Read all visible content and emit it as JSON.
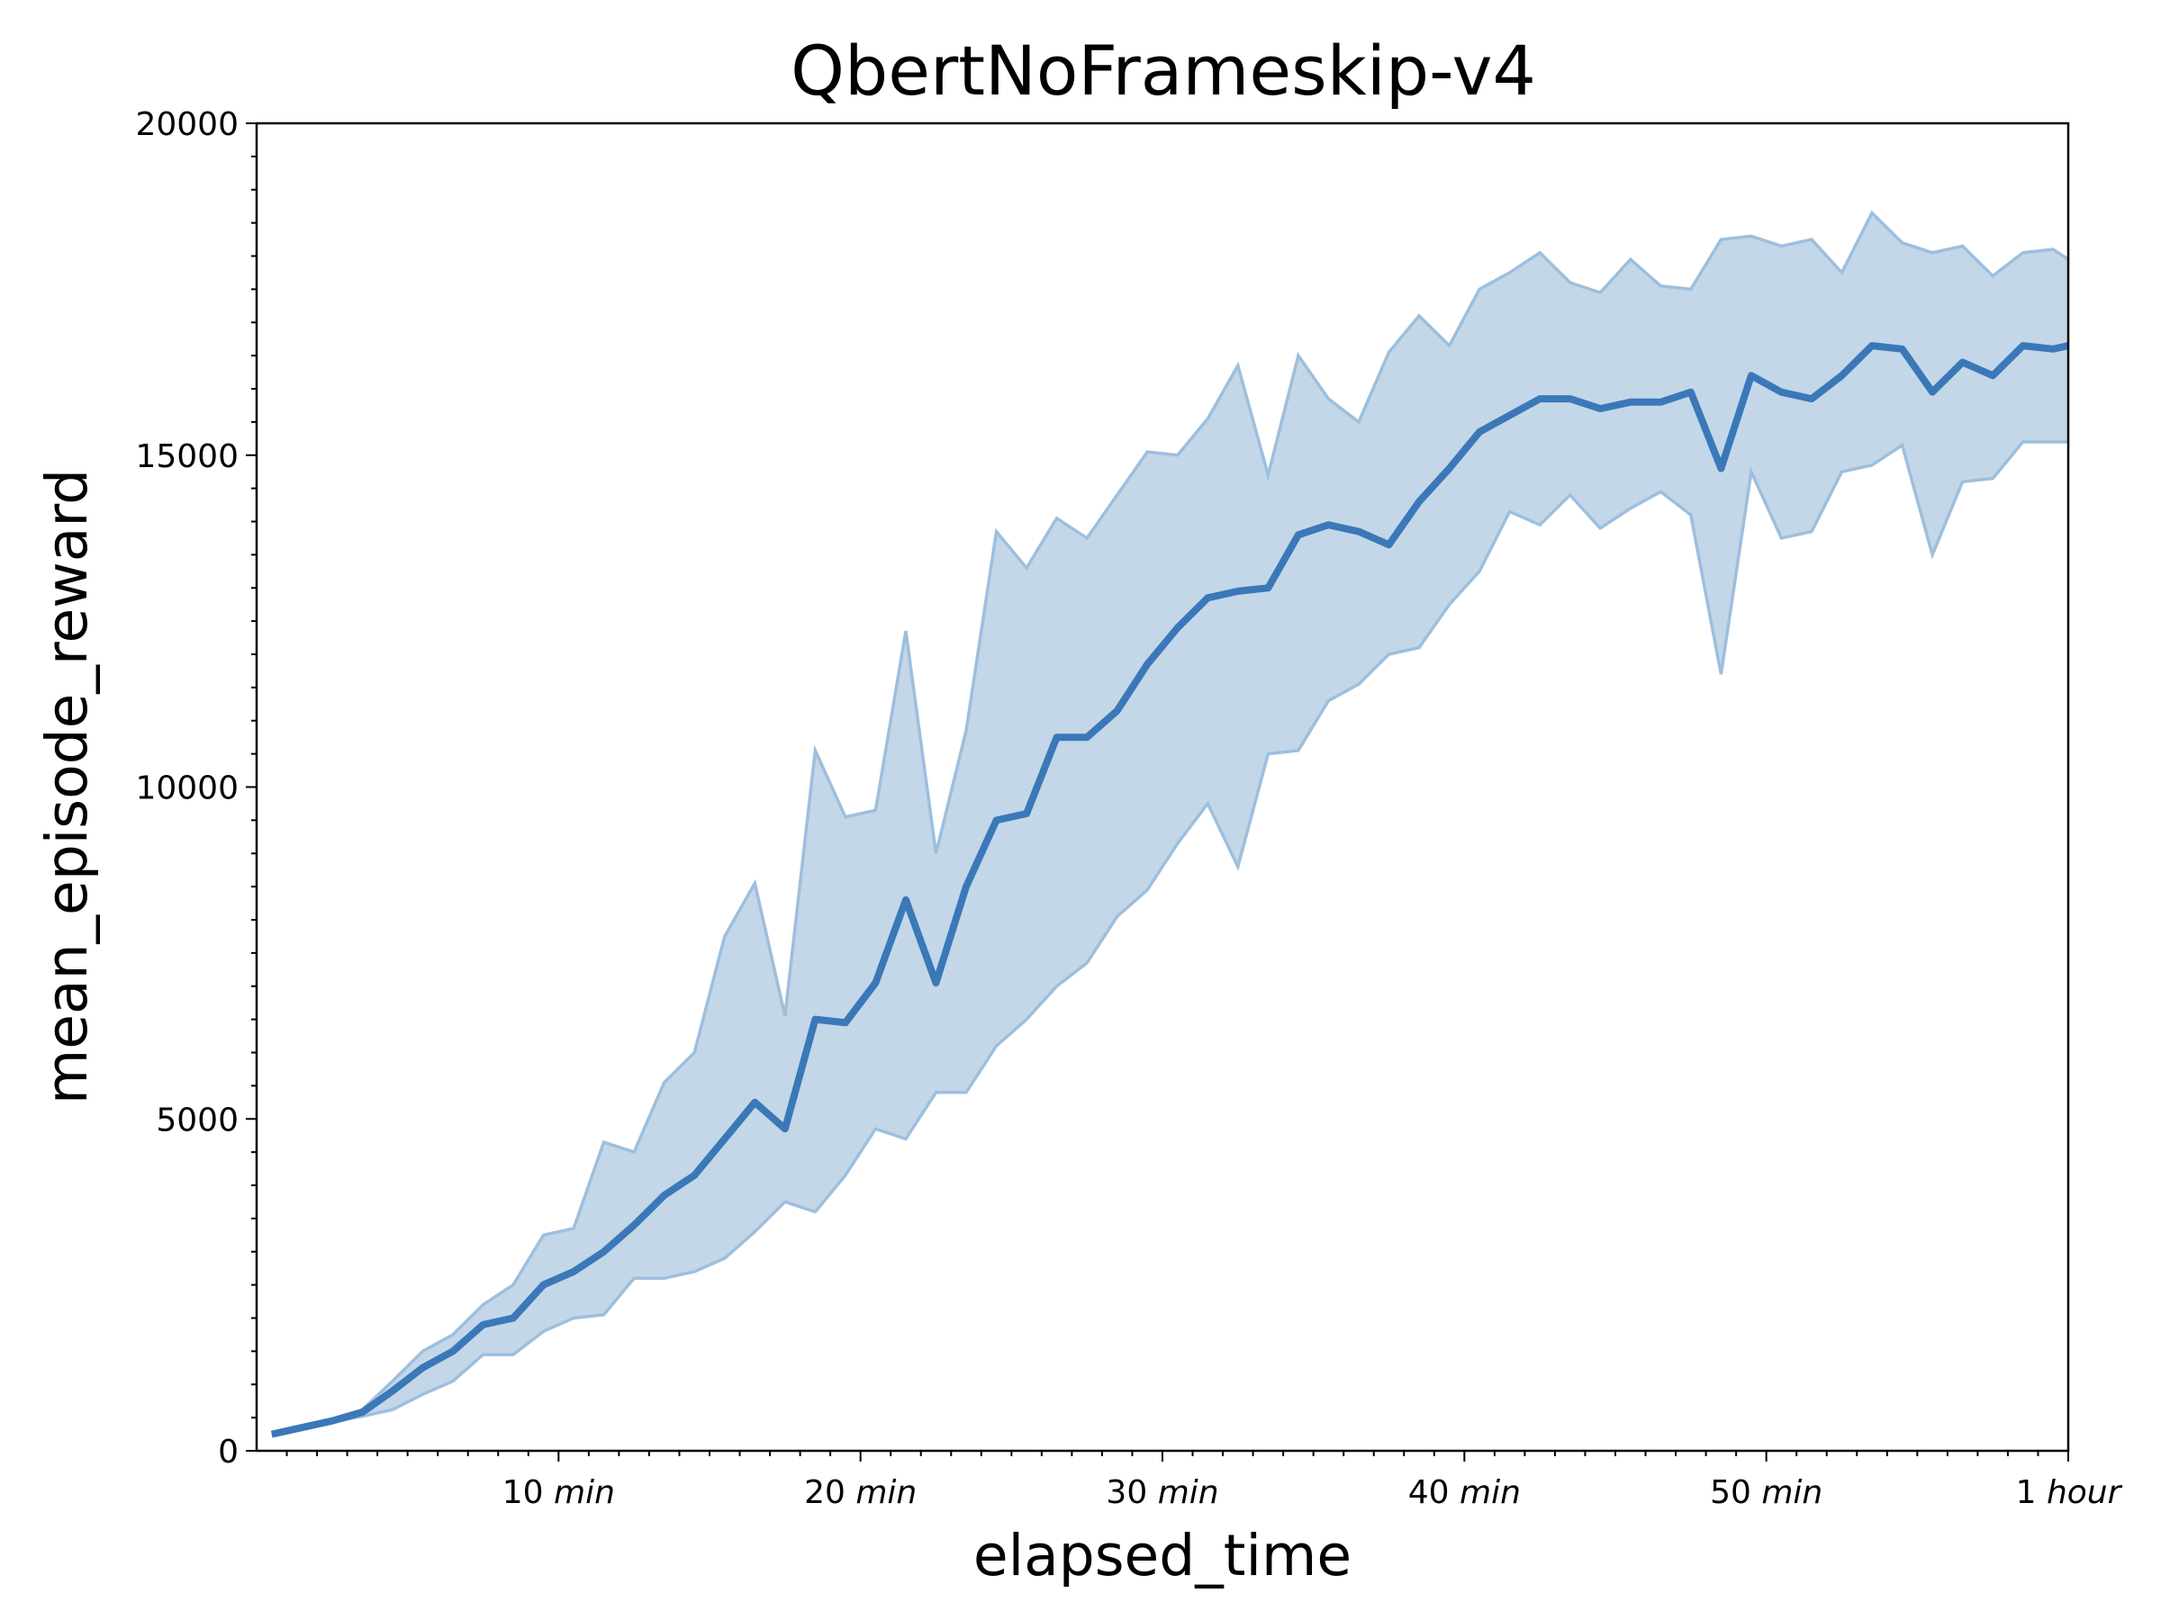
{
  "chart_data": {
    "type": "line",
    "title": "QbertNoFrameskip-v4",
    "xlabel": "elapsed_time",
    "ylabel": "mean_episode_reward",
    "xlim": [
      0,
      60
    ],
    "ylim": [
      0,
      20000
    ],
    "grid": false,
    "legend": "none",
    "colors": {
      "line": "#3a78b8",
      "band_fill": "#c3d7e8",
      "band_edge": "#9dbfde"
    },
    "y_ticks": [
      {
        "value": 0,
        "label": "0"
      },
      {
        "value": 5000,
        "label": "5000"
      },
      {
        "value": 10000,
        "label": "10000"
      },
      {
        "value": 15000,
        "label": "15000"
      },
      {
        "value": 20000,
        "label": "20000"
      }
    ],
    "x_ticks": [
      {
        "value": 10,
        "num": "10",
        "unit": "min"
      },
      {
        "value": 20,
        "num": "20",
        "unit": "min"
      },
      {
        "value": 30,
        "num": "30",
        "unit": "min"
      },
      {
        "value": 40,
        "num": "40",
        "unit": "min"
      },
      {
        "value": 50,
        "num": "50",
        "unit": "min"
      },
      {
        "value": 60,
        "num": "1",
        "unit": "hour"
      }
    ],
    "x": [
      0.5,
      1.5,
      2.5,
      3.5,
      4.5,
      5.5,
      6.5,
      7.5,
      8.5,
      9.5,
      10.5,
      11.5,
      12.5,
      13.5,
      14.5,
      15.5,
      16.5,
      17.5,
      18.5,
      19.5,
      20.5,
      21.5,
      22.5,
      23.5,
      24.5,
      25.5,
      26.5,
      27.5,
      28.5,
      29.5,
      30.5,
      31.5,
      32.5,
      33.5,
      34.5,
      35.5,
      36.5,
      37.5,
      38.5,
      39.5,
      40.5,
      41.5,
      42.5,
      43.5,
      44.5,
      45.5,
      46.5,
      47.5,
      48.5,
      49.5,
      50.5,
      51.5,
      52.5,
      53.5,
      54.5,
      55.5,
      56.5,
      57.5,
      58.5,
      59.5,
      60
    ],
    "series": [
      {
        "role": "mean",
        "values": [
          250,
          350,
          450,
          580,
          900,
          1250,
          1500,
          1900,
          2000,
          2500,
          2700,
          3000,
          3400,
          3850,
          4150,
          4700,
          5250,
          4850,
          6500,
          6450,
          7050,
          8300,
          7050,
          8500,
          9500,
          9600,
          10750,
          10750,
          11150,
          11850,
          12400,
          12850,
          12950,
          13000,
          13800,
          13950,
          13850,
          13650,
          14300,
          14800,
          15350,
          15600,
          15850,
          15850,
          15700,
          15800,
          15800,
          15950,
          14800,
          16200,
          15950,
          15850,
          16200,
          16650,
          16600,
          15950,
          16400,
          16200,
          16650,
          16600,
          16650
        ]
      },
      {
        "role": "upper",
        "values": [
          270,
          380,
          480,
          620,
          1050,
          1500,
          1750,
          2200,
          2500,
          3250,
          3350,
          4650,
          4500,
          5550,
          6000,
          7750,
          8550,
          6550,
          10550,
          9550,
          9650,
          12350,
          9000,
          10850,
          13850,
          13300,
          14050,
          13750,
          14400,
          15050,
          15000,
          15550,
          16350,
          14700,
          16500,
          15850,
          15500,
          16550,
          17100,
          16650,
          17500,
          17750,
          18050,
          17600,
          17450,
          17950,
          17550,
          17500,
          18250,
          18300,
          18150,
          18250,
          17750,
          18650,
          18200,
          18050,
          18150,
          17700,
          18050,
          18100,
          17950
        ]
      },
      {
        "role": "lower",
        "values": [
          230,
          330,
          430,
          520,
          620,
          850,
          1050,
          1450,
          1450,
          1800,
          2000,
          2050,
          2600,
          2600,
          2700,
          2900,
          3300,
          3750,
          3600,
          4150,
          4850,
          4700,
          5400,
          5400,
          6100,
          6500,
          7000,
          7350,
          8050,
          8450,
          9150,
          9750,
          8800,
          10500,
          10550,
          11300,
          11550,
          12000,
          12100,
          12750,
          13250,
          14150,
          13950,
          14400,
          13900,
          14200,
          14450,
          14100,
          11700,
          14750,
          13750,
          13850,
          14750,
          14850,
          15150,
          13500,
          14600,
          14650,
          15200,
          15200,
          15200
        ]
      }
    ]
  }
}
